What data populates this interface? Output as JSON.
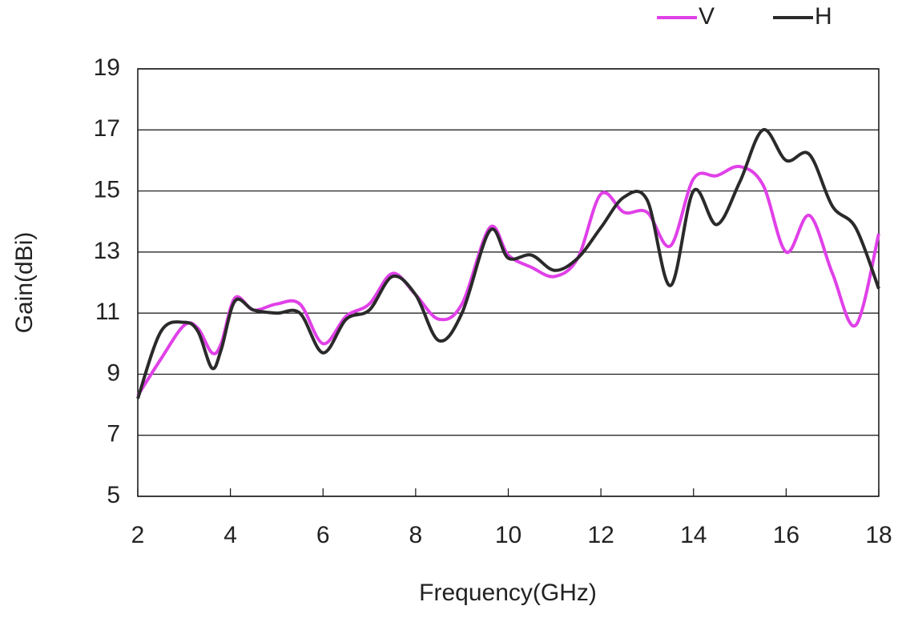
{
  "chart_data": {
    "type": "line",
    "x_label": "Frequency(GHz)",
    "y_label": "Gain(dBi)",
    "x": [
      2,
      2.5,
      3,
      3.3,
      3.6,
      3.8,
      4.1,
      4.5,
      5,
      5.5,
      6,
      6.5,
      7,
      7.5,
      8,
      8.5,
      9,
      9.6,
      10,
      10.5,
      11,
      11.5,
      12,
      12.5,
      13,
      13.5,
      14,
      14.5,
      15,
      15.5,
      16,
      16.5,
      17,
      17.5,
      18
    ],
    "series": [
      {
        "name": "V",
        "color": "#e040e8",
        "values": [
          8.3,
          9.5,
          10.6,
          10.5,
          9.7,
          10.0,
          11.5,
          11.1,
          11.3,
          11.3,
          10.0,
          10.9,
          11.3,
          12.3,
          11.6,
          10.8,
          11.3,
          13.8,
          12.9,
          12.5,
          12.2,
          12.8,
          14.9,
          14.3,
          14.3,
          13.2,
          15.4,
          15.5,
          15.8,
          15.2,
          13.0,
          14.2,
          12.3,
          10.6,
          13.6
        ]
      },
      {
        "name": "H",
        "color": "#2a2a2a",
        "values": [
          8.2,
          10.4,
          10.7,
          10.4,
          9.2,
          9.8,
          11.4,
          11.1,
          11.0,
          11.0,
          9.7,
          10.8,
          11.1,
          12.2,
          11.6,
          10.1,
          11.0,
          13.7,
          12.8,
          12.9,
          12.4,
          12.8,
          13.8,
          14.8,
          14.7,
          11.9,
          15.0,
          13.9,
          15.3,
          17.0,
          16.0,
          16.2,
          14.5,
          13.8,
          11.8
        ]
      }
    ],
    "xlim": [
      2,
      18
    ],
    "xticks": [
      2,
      4,
      6,
      8,
      10,
      12,
      14,
      16,
      18
    ],
    "ylim": [
      5,
      19
    ],
    "yticks": [
      5,
      7,
      9,
      11,
      13,
      15,
      17,
      19
    ],
    "grid": true,
    "legend": "top-right"
  }
}
